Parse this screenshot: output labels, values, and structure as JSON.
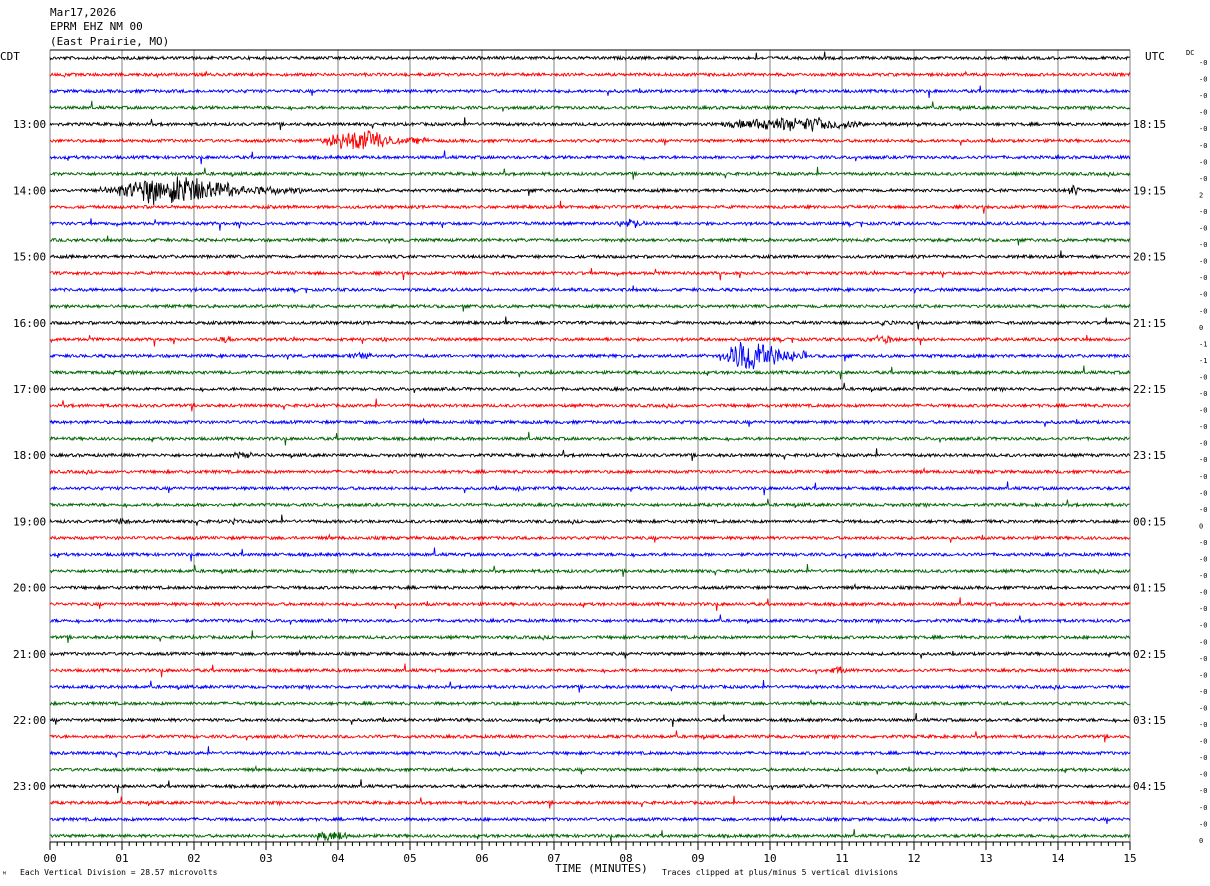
{
  "header": {
    "date": "Mar17,2026",
    "station": "EPRM EHZ NM 00",
    "location": "(East Prairie, MO)"
  },
  "left_zone_label": "CDT",
  "right_zone_label": "UTC",
  "dc_label": "DC",
  "footer": {
    "scale_note": "Each Vertical Division =   28.57 microvolts",
    "clip_note": "Traces clipped at plus/minus 5 vertical divisions",
    "corner_mark": "ᴹ"
  },
  "colors": {
    "trace_cycle": [
      "#000000",
      "#ff0000",
      "#0000ff",
      "#006400"
    ],
    "grid": "#808080"
  },
  "chart_data": {
    "type": "line",
    "title": "EPRM EHZ NM 00",
    "xlabel": "TIME (MINUTES)",
    "ylabel": "",
    "x_range": [
      0,
      15
    ],
    "x_ticks": [
      "00",
      "01",
      "02",
      "03",
      "04",
      "05",
      "06",
      "07",
      "08",
      "09",
      "10",
      "11",
      "12",
      "13",
      "14",
      "15"
    ],
    "traces_per_hour": 4,
    "minutes_per_trace": 15,
    "left_hour_labels": [
      {
        "label": "13:00",
        "trace": 4
      },
      {
        "label": "14:00",
        "trace": 8
      },
      {
        "label": "15:00",
        "trace": 12
      },
      {
        "label": "16:00",
        "trace": 16
      },
      {
        "label": "17:00",
        "trace": 20
      },
      {
        "label": "18:00",
        "trace": 24
      },
      {
        "label": "19:00",
        "trace": 28
      },
      {
        "label": "20:00",
        "trace": 32
      },
      {
        "label": "21:00",
        "trace": 36
      },
      {
        "label": "22:00",
        "trace": 40
      },
      {
        "label": "23:00",
        "trace": 44
      }
    ],
    "right_hour_labels": [
      {
        "label": "18:15",
        "trace": 4
      },
      {
        "label": "19:15",
        "trace": 8
      },
      {
        "label": "20:15",
        "trace": 12
      },
      {
        "label": "21:15",
        "trace": 16
      },
      {
        "label": "22:15",
        "trace": 20
      },
      {
        "label": "23:15",
        "trace": 24
      },
      {
        "label": "00:15",
        "trace": 28
      },
      {
        "label": "01:15",
        "trace": 32
      },
      {
        "label": "02:15",
        "trace": 36
      },
      {
        "label": "03:15",
        "trace": 40
      },
      {
        "label": "04:15",
        "trace": 44
      }
    ],
    "dc_offsets": [
      "-0",
      "-0",
      "-0",
      "-0",
      "-0",
      "-0",
      "-0",
      "-0",
      "2",
      "-0",
      "-0",
      "-0",
      "-0",
      "-0",
      "-0",
      "-0",
      "0",
      "-1",
      "-1",
      "-0",
      "-0",
      "-0",
      "-0",
      "-0",
      "-0",
      "-0",
      "-0",
      "-0",
      "0",
      "-0",
      "-0",
      "-0",
      "-0",
      "-0",
      "-0",
      "-0",
      "-0",
      "-0",
      "-0",
      "-0",
      "-0",
      "-0",
      "-0",
      "-0",
      "-0",
      "-0",
      "-0",
      "0"
    ],
    "events": [
      {
        "trace": 4,
        "start": 9.1,
        "end": 12.3,
        "amp": 2.2
      },
      {
        "trace": 5,
        "start": 3.7,
        "end": 5.3,
        "amp": 3.5
      },
      {
        "trace": 8,
        "start": 0.7,
        "end": 3.5,
        "amp": 4.5
      },
      {
        "trace": 8,
        "start": 14.1,
        "end": 14.4,
        "amp": 1.5
      },
      {
        "trace": 10,
        "start": 7.8,
        "end": 8.5,
        "amp": 1.5
      },
      {
        "trace": 16,
        "start": 11.5,
        "end": 11.8,
        "amp": 1.2
      },
      {
        "trace": 17,
        "start": 2.3,
        "end": 2.7,
        "amp": 1.2
      },
      {
        "trace": 17,
        "start": 4.5,
        "end": 4.9,
        "amp": 1.0
      },
      {
        "trace": 17,
        "start": 11.2,
        "end": 12.1,
        "amp": 1.2
      },
      {
        "trace": 18,
        "start": 9.3,
        "end": 10.5,
        "amp": 6.0
      },
      {
        "trace": 18,
        "start": 4.0,
        "end": 4.8,
        "amp": 1.0
      },
      {
        "trace": 19,
        "start": 0.2,
        "end": 3.0,
        "amp": 0.6
      },
      {
        "trace": 24,
        "start": 2.4,
        "end": 3.1,
        "amp": 1.0
      },
      {
        "trace": 26,
        "start": 6.3,
        "end": 6.9,
        "amp": 0.7
      },
      {
        "trace": 28,
        "start": 0.9,
        "end": 1.2,
        "amp": 1.5
      },
      {
        "trace": 28,
        "start": 2.5,
        "end": 2.7,
        "amp": 1.0
      },
      {
        "trace": 37,
        "start": 10.8,
        "end": 11.2,
        "amp": 1.2
      },
      {
        "trace": 47,
        "start": 3.6,
        "end": 4.5,
        "amp": 1.5
      }
    ]
  }
}
